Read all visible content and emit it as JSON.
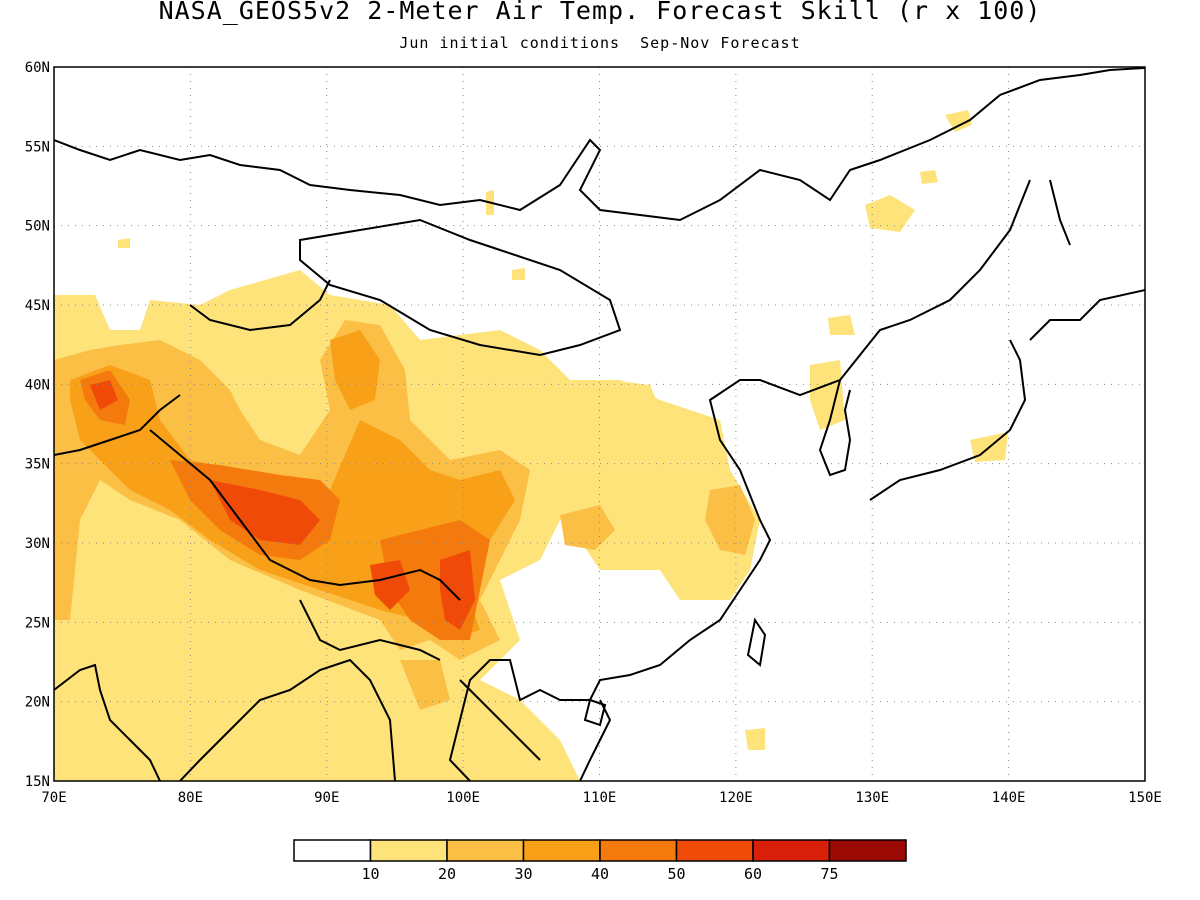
{
  "title": "NASA_GEOS5v2 2-Meter Air Temp. Forecast Skill (r x 100)",
  "subtitle": "Jun initial conditions  Sep-Nov Forecast",
  "map": {
    "lon_range": [
      70,
      150
    ],
    "lat_range": [
      15,
      60
    ],
    "lon_labels": [
      "70E",
      "80E",
      "90E",
      "100E",
      "110E",
      "120E",
      "130E",
      "140E",
      "150E"
    ],
    "lat_labels": [
      "15N",
      "20N",
      "25N",
      "30N",
      "35N",
      "40N",
      "45N",
      "50N",
      "55N",
      "60N"
    ],
    "gridlines": "dotted"
  },
  "colorbar": {
    "labels": [
      "10",
      "20",
      "30",
      "40",
      "50",
      "60",
      "75"
    ],
    "colors": [
      "#ffffff",
      "#fde37a",
      "#fbbf46",
      "#f8a017",
      "#f47a0e",
      "#f04a09",
      "#d71f0a",
      "#9b0a05"
    ]
  }
}
